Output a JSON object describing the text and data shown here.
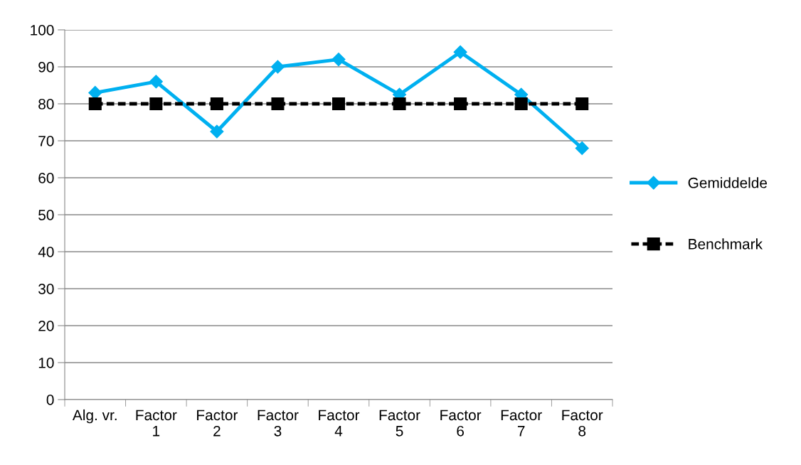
{
  "chart_data": {
    "type": "line",
    "categories": [
      "Alg. vr.",
      "Factor\n1",
      "Factor\n2",
      "Factor\n3",
      "Factor\n4",
      "Factor\n5",
      "Factor\n6",
      "Factor\n7",
      "Factor\n8"
    ],
    "series": [
      {
        "name": "Gemiddelde",
        "color": "#00b0f0",
        "marker": "diamond",
        "line_style": "solid",
        "values": [
          83,
          86,
          72.5,
          90,
          92,
          82.5,
          94,
          82.5,
          68
        ]
      },
      {
        "name": "Benchmark",
        "color": "#000000",
        "marker": "square",
        "line_style": "dashed",
        "values": [
          80,
          80,
          80,
          80,
          80,
          80,
          80,
          80,
          80
        ]
      }
    ],
    "ylim": [
      0,
      100
    ],
    "yticks": [
      0,
      10,
      20,
      30,
      40,
      50,
      60,
      70,
      80,
      90,
      100
    ],
    "grid": "y",
    "legend": "right"
  }
}
